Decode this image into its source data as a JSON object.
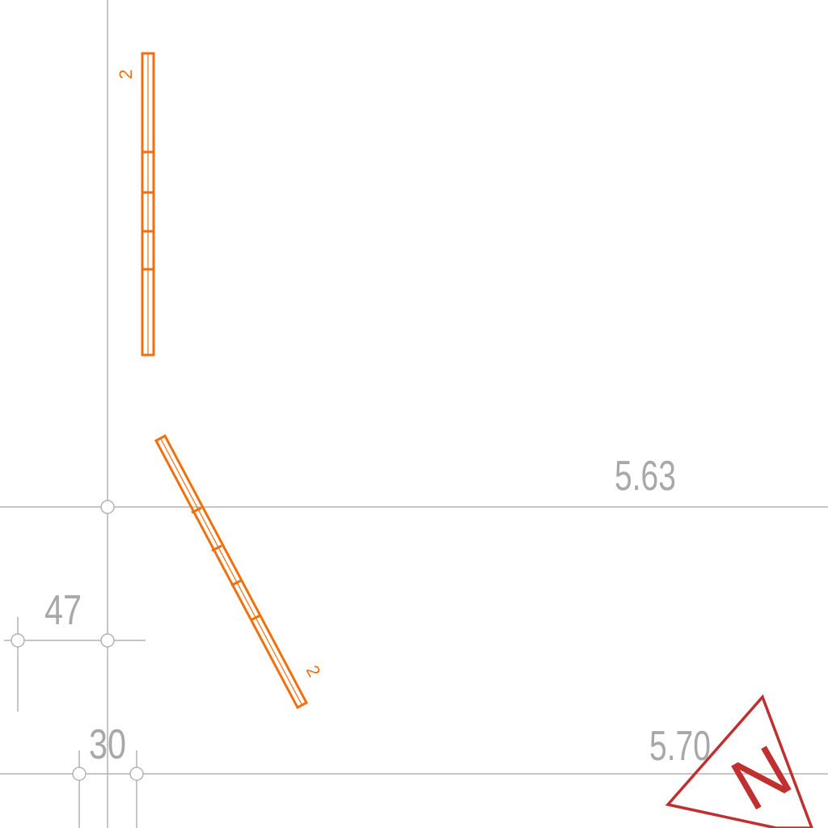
{
  "dimensions": {
    "dim_563": "5.63",
    "dim_570": "5.70",
    "dim_47": "47",
    "dim_30": "30"
  },
  "members": {
    "vertical_label": "2",
    "diagonal_label": "2"
  },
  "north_arrow": {
    "letter": "N",
    "color": "#c03030"
  },
  "colors": {
    "beam": "#f07010",
    "grid": "#b3b3b3",
    "dimension_text": "#a8a8a8"
  }
}
